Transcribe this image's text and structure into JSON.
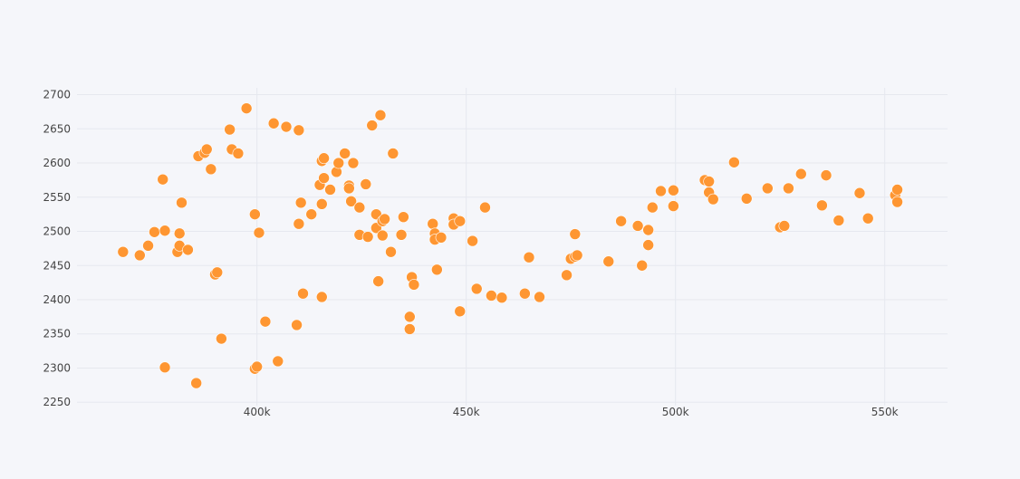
{
  "chart_data": {
    "type": "scatter",
    "title": "",
    "xlabel": "",
    "ylabel": "",
    "grid": true,
    "legend": "none",
    "xlim": [
      357000,
      565000
    ],
    "ylim": [
      2245,
      2710
    ],
    "x_ticks": [
      400000,
      450000,
      500000,
      550000
    ],
    "x_tick_labels": [
      "400k",
      "450k",
      "500k",
      "550k"
    ],
    "y_ticks": [
      2250,
      2300,
      2350,
      2400,
      2450,
      2500,
      2550,
      2600,
      2650,
      2700
    ],
    "y_tick_labels": [
      "2250",
      "2300",
      "2350",
      "2400",
      "2450",
      "2500",
      "2550",
      "2600",
      "2650",
      "2700"
    ],
    "colors": {
      "marker": "#fe9632",
      "marker_outline": "#ffffff",
      "grid": "#e6e8ef",
      "background": "#f5f6fa",
      "tick_text": "#444444"
    },
    "points": [
      [
        368000,
        2470
      ],
      [
        372000,
        2465
      ],
      [
        374000,
        2479
      ],
      [
        375500,
        2499
      ],
      [
        377500,
        2576
      ],
      [
        378000,
        2501
      ],
      [
        378000,
        2301
      ],
      [
        381000,
        2470
      ],
      [
        381500,
        2479
      ],
      [
        381500,
        2497
      ],
      [
        382000,
        2542
      ],
      [
        383500,
        2473
      ],
      [
        385500,
        2278
      ],
      [
        386000,
        2610
      ],
      [
        387500,
        2615
      ],
      [
        388000,
        2620
      ],
      [
        389000,
        2591
      ],
      [
        390000,
        2437
      ],
      [
        390500,
        2440
      ],
      [
        391500,
        2343
      ],
      [
        393500,
        2649
      ],
      [
        394000,
        2620
      ],
      [
        395500,
        2614
      ],
      [
        397500,
        2680
      ],
      [
        399500,
        2525
      ],
      [
        399500,
        2299
      ],
      [
        400000,
        2302
      ],
      [
        400500,
        2498
      ],
      [
        402000,
        2368
      ],
      [
        404000,
        2658
      ],
      [
        405000,
        2310
      ],
      [
        407000,
        2653
      ],
      [
        409500,
        2363
      ],
      [
        410000,
        2648
      ],
      [
        410000,
        2511
      ],
      [
        410500,
        2542
      ],
      [
        411000,
        2409
      ],
      [
        413000,
        2525
      ],
      [
        415000,
        2568
      ],
      [
        415500,
        2540
      ],
      [
        415500,
        2404
      ],
      [
        415500,
        2603
      ],
      [
        416000,
        2607
      ],
      [
        416000,
        2578
      ],
      [
        417500,
        2561
      ],
      [
        419000,
        2587
      ],
      [
        419500,
        2600
      ],
      [
        421000,
        2614
      ],
      [
        422000,
        2567
      ],
      [
        422000,
        2563
      ],
      [
        422500,
        2544
      ],
      [
        423000,
        2600
      ],
      [
        424500,
        2535
      ],
      [
        424500,
        2495
      ],
      [
        426000,
        2569
      ],
      [
        426500,
        2492
      ],
      [
        427500,
        2655
      ],
      [
        428500,
        2525
      ],
      [
        428500,
        2505
      ],
      [
        429000,
        2427
      ],
      [
        429500,
        2670
      ],
      [
        430000,
        2515
      ],
      [
        430000,
        2494
      ],
      [
        430500,
        2518
      ],
      [
        432000,
        2470
      ],
      [
        432500,
        2614
      ],
      [
        434500,
        2495
      ],
      [
        435000,
        2521
      ],
      [
        436500,
        2375
      ],
      [
        436500,
        2357
      ],
      [
        437000,
        2433
      ],
      [
        437500,
        2422
      ],
      [
        442000,
        2511
      ],
      [
        442500,
        2497
      ],
      [
        442500,
        2488
      ],
      [
        443000,
        2444
      ],
      [
        444000,
        2491
      ],
      [
        447000,
        2519
      ],
      [
        447000,
        2510
      ],
      [
        448500,
        2515
      ],
      [
        448500,
        2383
      ],
      [
        451500,
        2486
      ],
      [
        452500,
        2416
      ],
      [
        454500,
        2535
      ],
      [
        456000,
        2406
      ],
      [
        458500,
        2403
      ],
      [
        464000,
        2409
      ],
      [
        465000,
        2462
      ],
      [
        467500,
        2404
      ],
      [
        474000,
        2436
      ],
      [
        475000,
        2460
      ],
      [
        476000,
        2463
      ],
      [
        476000,
        2496
      ],
      [
        476500,
        2465
      ],
      [
        484000,
        2456
      ],
      [
        487000,
        2515
      ],
      [
        491000,
        2508
      ],
      [
        492000,
        2450
      ],
      [
        493500,
        2502
      ],
      [
        493500,
        2480
      ],
      [
        494500,
        2535
      ],
      [
        496500,
        2559
      ],
      [
        499500,
        2560
      ],
      [
        499500,
        2537
      ],
      [
        507000,
        2575
      ],
      [
        508000,
        2573
      ],
      [
        508000,
        2557
      ],
      [
        509000,
        2547
      ],
      [
        514000,
        2601
      ],
      [
        517000,
        2548
      ],
      [
        522000,
        2563
      ],
      [
        525000,
        2506
      ],
      [
        526000,
        2508
      ],
      [
        527000,
        2563
      ],
      [
        530000,
        2584
      ],
      [
        535000,
        2538
      ],
      [
        536000,
        2582
      ],
      [
        539000,
        2516
      ],
      [
        544000,
        2556
      ],
      [
        546000,
        2519
      ],
      [
        552500,
        2553
      ],
      [
        553000,
        2561
      ],
      [
        553000,
        2543
      ]
    ]
  }
}
